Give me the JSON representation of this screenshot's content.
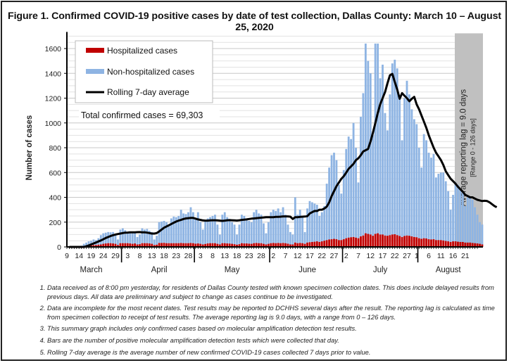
{
  "title": "Figure 1. Confirmed COVID-19 positive cases by date of test collection, Dallas County: March 10 – August 25, 2020",
  "chart_data": {
    "type": "bar",
    "stacked": true,
    "ylabel": "Number of cases",
    "ylim": [
      0,
      1700
    ],
    "yticks": [
      0,
      200,
      400,
      600,
      800,
      1000,
      1200,
      1400,
      1600
    ],
    "grid": true,
    "start_date": "2020-03-10",
    "xtick_labels": [
      "9",
      "14",
      "19",
      "24",
      "29",
      "3",
      "8",
      "13",
      "18",
      "23",
      "28",
      "3",
      "8",
      "13",
      "18",
      "23",
      "28",
      "2",
      "7",
      "12",
      "17",
      "22",
      "27",
      "2",
      "7",
      "12",
      "17",
      "22",
      "27",
      "1",
      "6",
      "11",
      "16",
      "21"
    ],
    "months": [
      "March",
      "April",
      "May",
      "June",
      "July",
      "August"
    ],
    "legend": {
      "position": "top-left",
      "entries": [
        "Hospitalized cases",
        "Non-hospitalized cases",
        "Rolling 7-day average"
      ]
    },
    "annotation_total": "Total confirmed cases = 69,303",
    "lag_band": {
      "label": "Average reporting lag = 9.0 days",
      "sublabel": "[Range 0 - 126 days]",
      "from_day_offset": 159,
      "to_day_offset": 168
    },
    "colors": {
      "hospitalized": "#c00000",
      "non_hospitalized": "#8eb4e3",
      "average": "#000000",
      "lag_band": "#c0c0c0"
    },
    "series": [
      {
        "name": "Total cases",
        "values": [
          0,
          0,
          0,
          0,
          0,
          10,
          25,
          35,
          45,
          50,
          60,
          55,
          70,
          95,
          110,
          115,
          120,
          118,
          120,
          100,
          60,
          140,
          150,
          135,
          120,
          115,
          110,
          120,
          80,
          100,
          150,
          140,
          145,
          130,
          120,
          60,
          90,
          200,
          205,
          210,
          200,
          180,
          230,
          245,
          240,
          250,
          300,
          270,
          265,
          280,
          320,
          280,
          230,
          280,
          200,
          140,
          210,
          230,
          240,
          250,
          260,
          180,
          100,
          260,
          280,
          240,
          225,
          200,
          180,
          100,
          180,
          260,
          250,
          230,
          210,
          200,
          280,
          300,
          270,
          260,
          190,
          110,
          200,
          280,
          300,
          290,
          310,
          280,
          320,
          260,
          180,
          120,
          100,
          400,
          260,
          300,
          240,
          120,
          310,
          370,
          360,
          350,
          340,
          250,
          280,
          330,
          510,
          640,
          740,
          760,
          700,
          500,
          430,
          620,
          790,
          890,
          870,
          1000,
          800,
          520,
          1050,
          1240,
          1640,
          1500,
          1400,
          900,
          1640,
          1640,
          1360,
          1470,
          1080,
          940,
          1230,
          1480,
          1510,
          1440,
          1200,
          860,
          1200,
          1340,
          1230,
          1110,
          1030,
          990,
          800,
          640,
          910,
          860,
          760,
          720,
          750,
          560,
          590,
          600,
          600,
          530,
          450,
          300,
          420,
          520,
          500,
          470,
          450,
          330,
          400,
          400,
          380,
          320,
          260,
          200,
          180
        ]
      },
      {
        "name": "Hospitalized cases",
        "values": [
          0,
          0,
          0,
          0,
          0,
          3,
          6,
          8,
          10,
          12,
          15,
          15,
          18,
          20,
          25,
          28,
          30,
          30,
          28,
          25,
          15,
          30,
          30,
          30,
          30,
          28,
          25,
          28,
          20,
          22,
          30,
          30,
          30,
          28,
          25,
          15,
          18,
          32,
          32,
          33,
          30,
          30,
          30,
          30,
          30,
          30,
          32,
          30,
          30,
          30,
          32,
          30,
          26,
          28,
          25,
          20,
          24,
          28,
          30,
          30,
          30,
          25,
          20,
          30,
          30,
          28,
          27,
          25,
          22,
          18,
          22,
          30,
          28,
          28,
          26,
          25,
          30,
          32,
          30,
          30,
          25,
          20,
          25,
          30,
          32,
          30,
          32,
          30,
          32,
          30,
          26,
          20,
          20,
          35,
          30,
          32,
          30,
          25,
          35,
          38,
          40,
          42,
          45,
          40,
          45,
          50,
          55,
          60,
          62,
          65,
          62,
          55,
          55,
          62,
          70,
          75,
          78,
          80,
          75,
          70,
          85,
          92,
          110,
          105,
          100,
          90,
          105,
          110,
          100,
          100,
          92,
          90,
          95,
          100,
          102,
          95,
          88,
          80,
          88,
          92,
          90,
          85,
          80,
          78,
          70,
          65,
          70,
          68,
          62,
          60,
          62,
          55,
          55,
          55,
          52,
          48,
          45,
          40,
          45,
          45,
          42,
          40,
          40,
          35,
          35,
          35,
          32,
          30,
          28,
          25,
          20
        ]
      },
      {
        "name": "Rolling 7-day average",
        "values": [
          0,
          0,
          0,
          0,
          0,
          0,
          0,
          5,
          12,
          20,
          28,
          36,
          44,
          52,
          62,
          72,
          80,
          88,
          95,
          100,
          104,
          108,
          112,
          115,
          116,
          118,
          118,
          118,
          119,
          120,
          118,
          118,
          115,
          112,
          108,
          108,
          112,
          125,
          140,
          155,
          165,
          175,
          185,
          195,
          205,
          212,
          218,
          225,
          230,
          232,
          234,
          234,
          228,
          222,
          218,
          214,
          212,
          212,
          214,
          215,
          215,
          214,
          212,
          210,
          212,
          215,
          216,
          215,
          214,
          213,
          215,
          218,
          220,
          222,
          225,
          228,
          230,
          232,
          234,
          236,
          238,
          240,
          240,
          240,
          240,
          242,
          242,
          244,
          246,
          246,
          246,
          244,
          225,
          240,
          240,
          242,
          244,
          245,
          248,
          270,
          280,
          290,
          290,
          300,
          300,
          310,
          325,
          360,
          410,
          450,
          490,
          520,
          550,
          570,
          600,
          630,
          650,
          670,
          700,
          715,
          740,
          770,
          780,
          790,
          850,
          920,
          1000,
          1080,
          1150,
          1200,
          1250,
          1320,
          1385,
          1395,
          1330,
          1270,
          1195,
          1240,
          1220,
          1200,
          1175,
          1195,
          1210,
          1150,
          1110,
          1060,
          1010,
          960,
          900,
          850,
          800,
          760,
          730,
          700,
          660,
          610,
          580,
          550,
          530,
          510,
          485,
          465,
          445,
          420,
          410,
          400,
          400,
          390,
          380,
          375,
          370,
          372,
          370,
          360,
          345,
          330,
          320
        ]
      }
    ]
  },
  "notes": [
    "Data received as of 8:00 pm yesterday, for residents of Dallas County tested with known specimen collection dates.  This does include delayed results from previous days. All data are preliminary and subject to change as cases continue to be investigated.",
    "Data are incomplete for the most recent dates. Test results may be reported to DCHHS several days after the result. The reporting lag is calculated as time from specimen collection to receipt of test results. The average reporting lag is 9.0 days, with a range from 0 – 126 days.",
    "This summary graph includes only confirmed cases based on molecular amplification detection test results.",
    "Bars are the number of positive molecular amplification detection tests which were collected that day.",
    "Rolling 7-day average is the average number of new confirmed COVID-19 cases collected 7 days prior to value."
  ]
}
